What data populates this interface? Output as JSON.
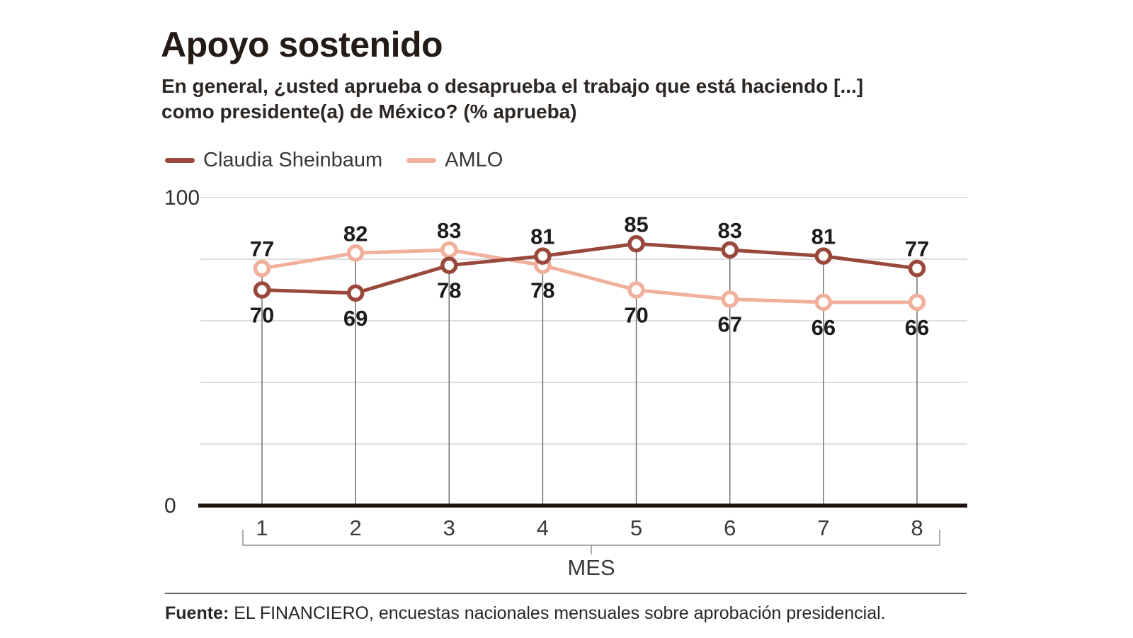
{
  "header": {
    "title": "Apoyo sostenido",
    "subtitle_line1": "En general, ¿usted aprueba o desaprueba el trabajo que está haciendo [...]",
    "subtitle_line2": "como presidente(a) de México? (% aprueba)"
  },
  "chart_data": {
    "type": "line",
    "title": "Apoyo sostenido",
    "categories": [
      "1",
      "2",
      "3",
      "4",
      "5",
      "6",
      "7",
      "8"
    ],
    "xlabel": "MES",
    "ylabel": "",
    "ylim": [
      0,
      100
    ],
    "y_ticks": [
      {
        "value": 100,
        "label": "100"
      },
      {
        "value": 0,
        "label": "0"
      }
    ],
    "gridline_values": [
      20,
      40,
      60,
      80,
      100
    ],
    "grid": true,
    "point_labels": true,
    "legend_position": "top",
    "series": [
      {
        "name": "Claudia Sheinbaum",
        "color": "#99493c",
        "values": [
          70,
          69,
          78,
          81,
          85,
          83,
          81,
          77
        ]
      },
      {
        "name": "AMLO",
        "color": "#f0b09b",
        "values": [
          77,
          82,
          83,
          78,
          70,
          67,
          66,
          66
        ]
      }
    ]
  },
  "style_colors": {
    "gridline": "#cccbc9",
    "baseline": "#1d1412",
    "drop_line": "#6b6764",
    "data_label": "#1e1c1a",
    "axis_text": "#3f3b38",
    "y_tick_text": "#312d2a",
    "bracket": "#909090",
    "marker_fill": "#ffffff"
  },
  "footer": {
    "source_label": "Fuente:",
    "source_text": "EL FINANCIERO, encuestas nacionales mensuales sobre aprobación presidencial."
  }
}
